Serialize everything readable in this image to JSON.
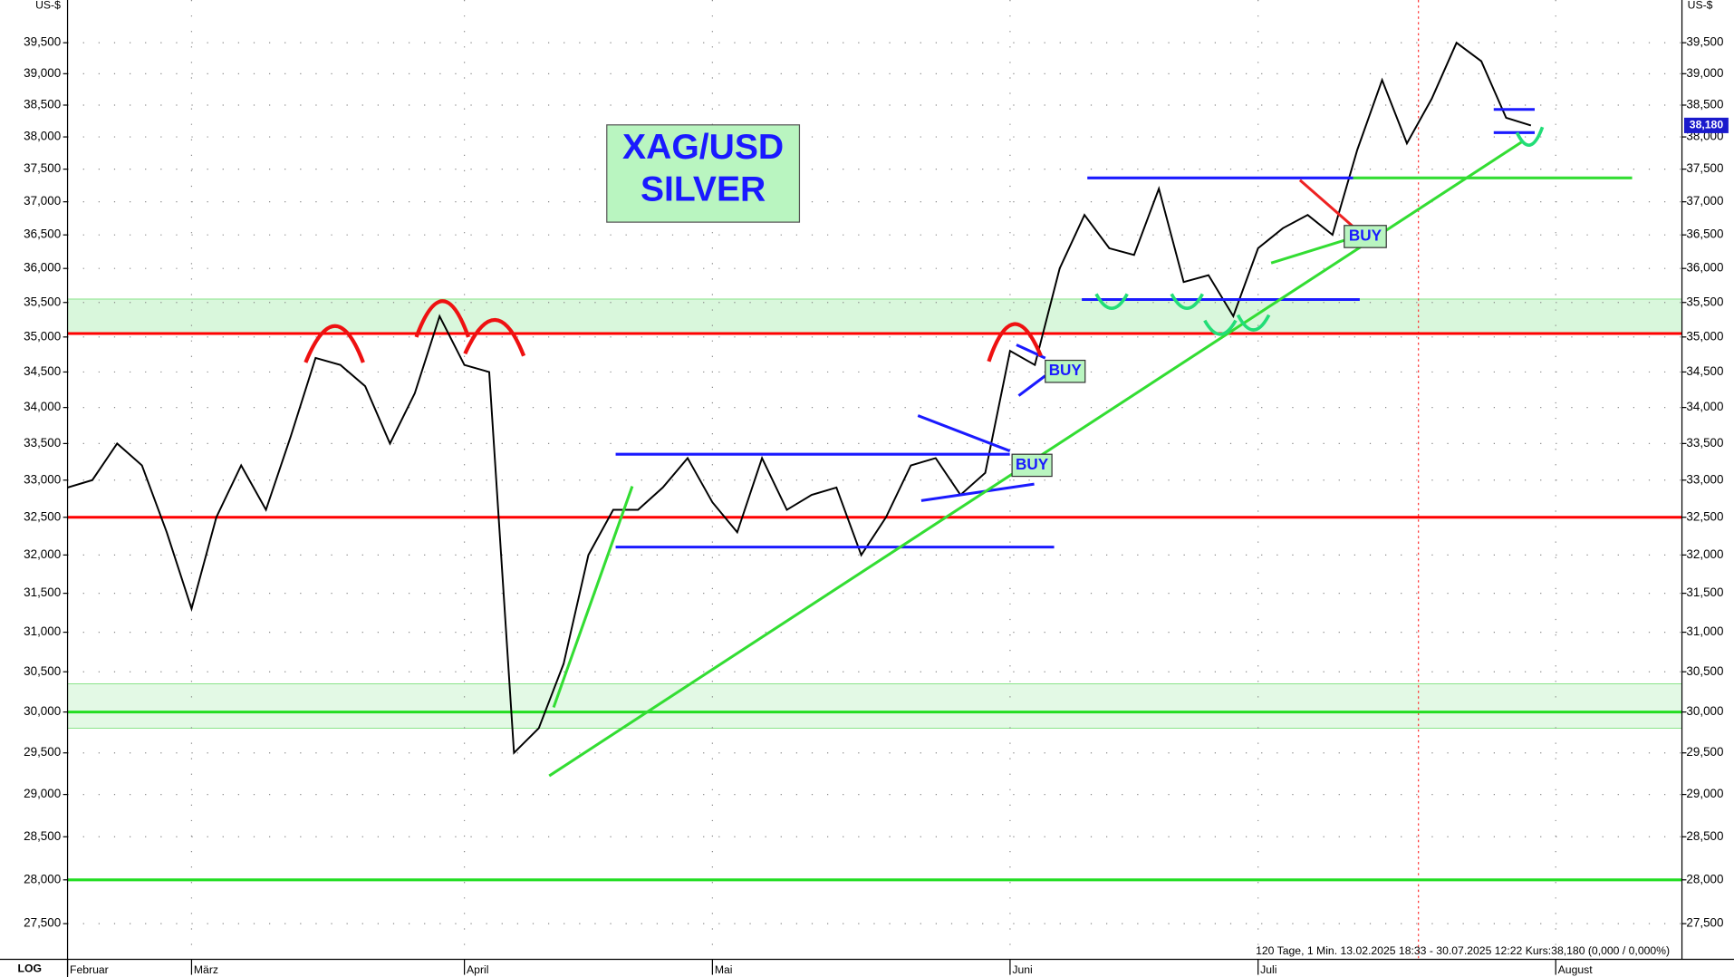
{
  "chart_data": {
    "type": "line",
    "title": "XAG/USD",
    "subtitle": "SILVER",
    "y_label": "US-$",
    "scale_label": "LOG",
    "log_scale": true,
    "grid": true,
    "color": "#000000",
    "footer": "120 Tage, 1 Min. 13.02.2025 18:33 - 30.07.2025 12:22  Kurs:38,180 (0,000 / 0,000%)",
    "last_label": "38,180",
    "annotations": [
      "BUY",
      "BUY",
      "BUY"
    ],
    "categories": [
      "Februar",
      null,
      null,
      null,
      null,
      "März",
      null,
      null,
      null,
      null,
      null,
      null,
      null,
      null,
      null,
      null,
      "April",
      null,
      null,
      null,
      null,
      null,
      null,
      null,
      null,
      null,
      "Mai",
      null,
      null,
      null,
      null,
      null,
      null,
      null,
      null,
      null,
      null,
      null,
      "Juni",
      null,
      null,
      null,
      null,
      null,
      null,
      null,
      null,
      null,
      "Juli",
      null,
      null,
      null,
      null,
      null,
      null,
      null,
      null,
      null,
      null,
      null,
      "August"
    ],
    "values": [
      32.9,
      33.0,
      33.5,
      33.2,
      32.3,
      31.3,
      32.5,
      33.2,
      32.6,
      33.6,
      34.7,
      34.6,
      34.3,
      33.5,
      34.2,
      35.3,
      34.6,
      34.5,
      29.5,
      29.8,
      30.6,
      32.0,
      32.6,
      32.6,
      32.9,
      33.3,
      32.7,
      32.3,
      33.3,
      32.6,
      32.8,
      32.9,
      32.0,
      32.5,
      33.2,
      33.3,
      32.8,
      33.1,
      34.8,
      34.6,
      36.0,
      36.8,
      36.3,
      36.2,
      37.2,
      35.8,
      35.9,
      35.3,
      36.3,
      36.6,
      36.8,
      36.5,
      37.8,
      38.9,
      37.9,
      38.6,
      39.5,
      39.2,
      38.3,
      38.18,
      null
    ],
    "ylim": [
      27.1,
      40.2
    ],
    "yticks": [
      {
        "value": 27.5,
        "label": "27,500"
      },
      {
        "value": 28.0,
        "label": "28,000"
      },
      {
        "value": 28.5,
        "label": "28,500"
      },
      {
        "value": 29.0,
        "label": "29,000"
      },
      {
        "value": 29.5,
        "label": "29,500"
      },
      {
        "value": 30.0,
        "label": "30,000"
      },
      {
        "value": 30.5,
        "label": "30,500"
      },
      {
        "value": 31.0,
        "label": "31,000"
      },
      {
        "value": 31.5,
        "label": "31,500"
      },
      {
        "value": 32.0,
        "label": "32,000"
      },
      {
        "value": 32.5,
        "label": "32,500"
      },
      {
        "value": 33.0,
        "label": "33,000"
      },
      {
        "value": 33.5,
        "label": "33,500"
      },
      {
        "value": 34.0,
        "label": "34,000"
      },
      {
        "value": 34.5,
        "label": "34,500"
      },
      {
        "value": 35.0,
        "label": "35,000"
      },
      {
        "value": 35.5,
        "label": "35,500"
      },
      {
        "value": 36.0,
        "label": "36,000"
      },
      {
        "value": 36.5,
        "label": "36,500"
      },
      {
        "value": 37.0,
        "label": "37,000"
      },
      {
        "value": 37.5,
        "label": "37,500"
      },
      {
        "value": 38.0,
        "label": "38,000"
      },
      {
        "value": 38.5,
        "label": "38,500"
      },
      {
        "value": 39.0,
        "label": "39,000"
      },
      {
        "value": 39.5,
        "label": "39,500"
      }
    ],
    "zones": [
      {
        "from": 35.05,
        "to": 35.55,
        "color": "#d9f7dc"
      },
      {
        "from": 29.8,
        "to": 30.35,
        "color": "#e3f9e5"
      }
    ],
    "levels": [
      {
        "value": 35.05,
        "color": "#ff0000"
      },
      {
        "value": 32.5,
        "color": "#ff0000"
      },
      {
        "value": 30.0,
        "color": "#22dd22"
      },
      {
        "value": 28.0,
        "color": "#22dd22"
      }
    ]
  }
}
